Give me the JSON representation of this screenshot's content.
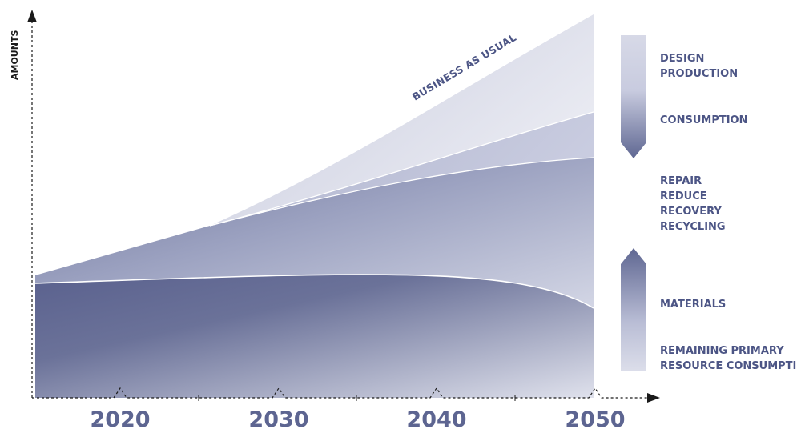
{
  "chart_data": {
    "type": "area",
    "y_axis_label": "AMOUNTS",
    "x_ticks": [
      "2020",
      "2030",
      "2040",
      "2050"
    ],
    "annotation": "BUSINESS AS USUAL",
    "right_labels": {
      "top_group": [
        "DESIGN",
        "PRODUCTION",
        "CONSUMPTION"
      ],
      "middle_group": [
        "REPAIR",
        "REDUCE",
        "RECOVERY",
        "RECYCLING"
      ],
      "bottom_group": [
        "MATERIALS",
        "REMAINING PRIMARY",
        "RESOURCE CONSUMPTION"
      ]
    },
    "arrows": {
      "top": "down",
      "bottom": "up"
    },
    "colors": {
      "dark": "#5b6390",
      "mid": "#9aa0c0",
      "light": "#d9dbe8",
      "label": "#4c5585"
    }
  }
}
